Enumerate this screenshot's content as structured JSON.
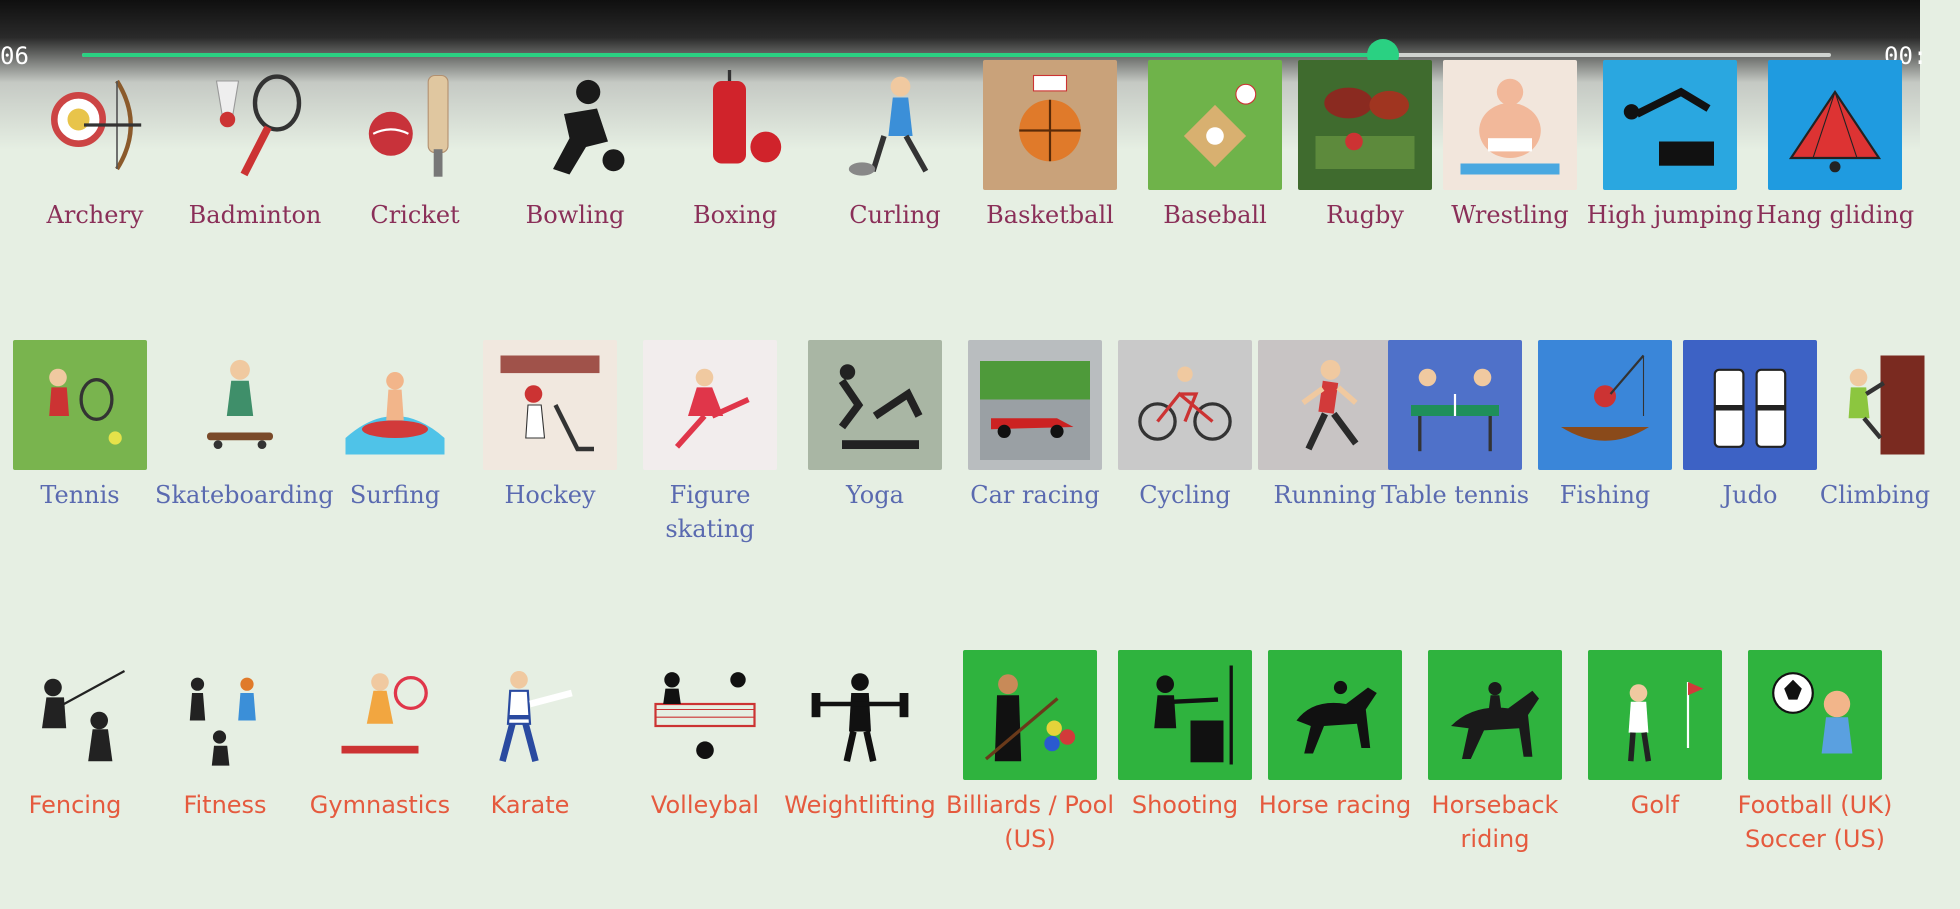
{
  "player": {
    "time_elapsed": "06",
    "time_total": "00:",
    "progress_fraction": 0.744,
    "accent_color": "#2ad182"
  },
  "sports": [
    {
      "label": "Archery",
      "icon": "archery-icon"
    },
    {
      "label": "Badminton",
      "icon": "badminton-icon"
    },
    {
      "label": "Cricket",
      "icon": "cricket-icon"
    },
    {
      "label": "Bowling",
      "icon": "bowling-icon"
    },
    {
      "label": "Boxing",
      "icon": "boxing-icon"
    },
    {
      "label": "Curling",
      "icon": "curling-icon"
    },
    {
      "label": "Basketball",
      "icon": "basketball-icon"
    },
    {
      "label": "Baseball",
      "icon": "baseball-icon"
    },
    {
      "label": "Rugby",
      "icon": "rugby-icon"
    },
    {
      "label": "Wrestling",
      "icon": "wrestling-icon"
    },
    {
      "label": "High jumping",
      "icon": "high-jump-icon"
    },
    {
      "label": "Hang gliding",
      "icon": "hang-glider-icon"
    },
    {
      "label": "Tennis",
      "icon": "tennis-icon"
    },
    {
      "label": "Skateboarding",
      "icon": "skateboard-icon"
    },
    {
      "label": "Surfing",
      "icon": "surfing-icon"
    },
    {
      "label": "Hockey",
      "icon": "hockey-icon"
    },
    {
      "label": "Figure skating",
      "icon": "figure-skating-icon"
    },
    {
      "label": "Yoga",
      "icon": "yoga-icon"
    },
    {
      "label": "Car racing",
      "icon": "race-car-icon"
    },
    {
      "label": "Cycling",
      "icon": "bicycle-icon"
    },
    {
      "label": "Running",
      "icon": "running-icon"
    },
    {
      "label": "Table tennis",
      "icon": "table-tennis-icon"
    },
    {
      "label": "Fishing",
      "icon": "fishing-icon"
    },
    {
      "label": "Judo",
      "icon": "judo-icon"
    },
    {
      "label": "Climbing",
      "icon": "climbing-icon"
    },
    {
      "label": "Fencing",
      "icon": "fencing-icon"
    },
    {
      "label": "Fitness",
      "icon": "fitness-icon"
    },
    {
      "label": "Gymnastics",
      "icon": "gymnastics-icon"
    },
    {
      "label": "Karate",
      "icon": "karate-icon"
    },
    {
      "label": "Volleybal",
      "icon": "volleyball-icon"
    },
    {
      "label": "Weightlifting",
      "icon": "weightlifting-icon"
    },
    {
      "label": "Billiards / Pool (US)",
      "icon": "billiards-icon"
    },
    {
      "label": "Shooting",
      "icon": "shooting-icon"
    },
    {
      "label": "Horse racing",
      "icon": "horse-racing-icon"
    },
    {
      "label": "Horseback riding",
      "icon": "horseback-riding-icon"
    },
    {
      "label": "Golf",
      "icon": "golf-icon"
    },
    {
      "label": "Football (UK) Soccer (US)",
      "icon": "soccer-ball-icon"
    }
  ]
}
